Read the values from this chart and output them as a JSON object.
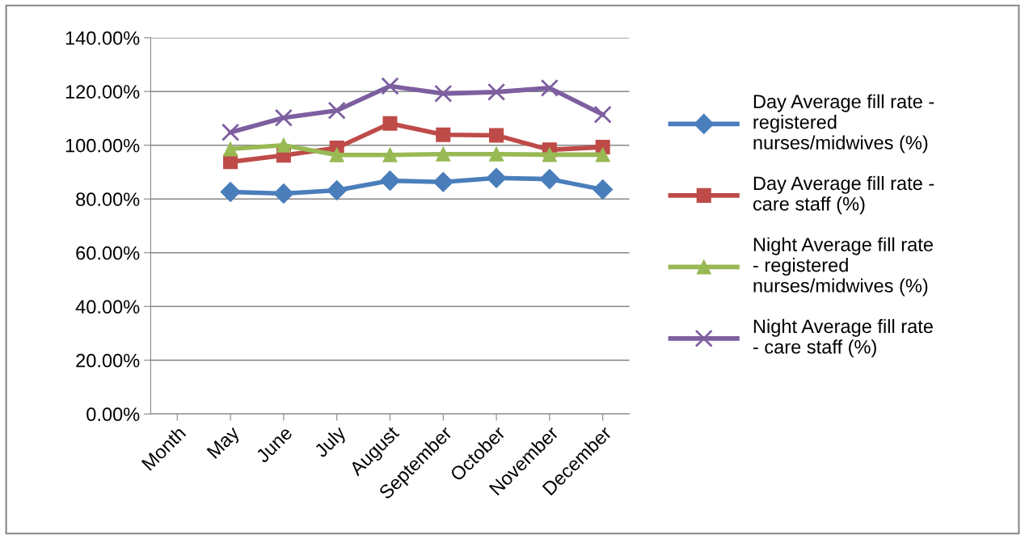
{
  "chart_data": {
    "type": "line",
    "categories": [
      "Month",
      "May",
      "June",
      "July",
      "August",
      "September",
      "October",
      "November",
      "December"
    ],
    "series": [
      {
        "name": "Day Average fill rate - registered nurses/midwives (%)",
        "color": "#4a7ebb",
        "marker": "diamond",
        "values": [
          null,
          82.6,
          82.0,
          83.2,
          86.8,
          86.3,
          87.8,
          87.4,
          83.5
        ]
      },
      {
        "name": "Day Average fill rate - care staff (%)",
        "color": "#be4b48",
        "marker": "square",
        "values": [
          null,
          93.8,
          96.2,
          99.0,
          108.1,
          103.9,
          103.7,
          98.3,
          99.3
        ]
      },
      {
        "name": "Night Average fill rate - registered nurses/midwives (%)",
        "color": "#98b954",
        "marker": "triangle",
        "values": [
          null,
          98.6,
          100.0,
          96.4,
          96.4,
          96.7,
          96.7,
          96.5,
          96.5
        ]
      },
      {
        "name": "Night Average fill rate - care staff (%)",
        "color": "#7d5fa0",
        "marker": "cross",
        "values": [
          null,
          104.8,
          110.2,
          112.9,
          122.0,
          119.2,
          119.8,
          121.3,
          111.4
        ]
      }
    ],
    "ylim": [
      0,
      140
    ],
    "yticks": [
      {
        "value": 0,
        "label": "0.00%"
      },
      {
        "value": 20,
        "label": "20.00%"
      },
      {
        "value": 40,
        "label": "40.00%"
      },
      {
        "value": 60,
        "label": "60.00%"
      },
      {
        "value": 80,
        "label": "80.00%"
      },
      {
        "value": 100,
        "label": "100.00%"
      },
      {
        "value": 120,
        "label": "120.00%"
      },
      {
        "value": 140,
        "label": "140.00%"
      }
    ],
    "grid": "y",
    "legend": "right",
    "line_style": "solid"
  }
}
